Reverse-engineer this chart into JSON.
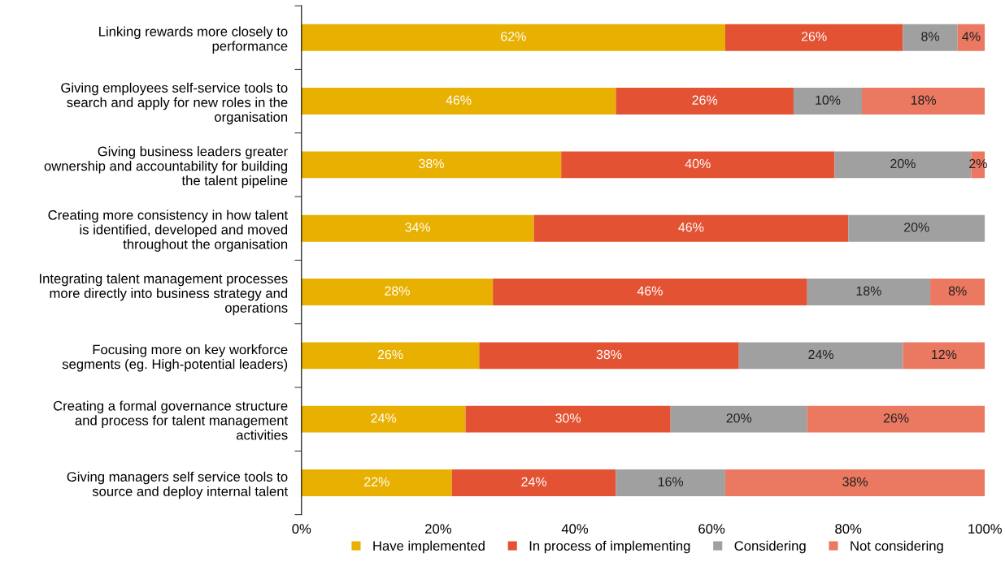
{
  "chart_data": {
    "type": "bar",
    "orientation": "horizontal",
    "stacked": true,
    "grid": false,
    "legend": "bottom",
    "categories": [
      "Linking rewards more closely to\nperformance",
      "Giving employees self-service tools to\nsearch and apply for new roles in the\norganisation",
      "Giving business leaders greater\nownership and accountability for building\nthe talent pipeline",
      "Creating more consistency in how talent\nis identified, developed and moved\nthroughout the organisation",
      "Integrating talent management processes\nmore directly into business strategy and\noperations",
      "Focusing more on key workforce\nsegments (eg. High-potential leaders)",
      "Creating a formal governance structure\nand process for talent management\nactivities",
      "Giving managers self service tools to\nsource and deploy internal talent"
    ],
    "series": [
      {
        "name": "Have implemented",
        "color": "#e8b000",
        "values": [
          62,
          46,
          38,
          34,
          28,
          26,
          24,
          22
        ],
        "value_labels": [
          "62%",
          "46%",
          "38%",
          "34%",
          "28%",
          "26%",
          "24%",
          "22%"
        ]
      },
      {
        "name": "In process of implementing",
        "color": "#e35233",
        "values": [
          26,
          26,
          40,
          46,
          46,
          38,
          30,
          24
        ],
        "value_labels": [
          "26%",
          "26%",
          "40%",
          "46%",
          "46%",
          "38%",
          "30%",
          "24%"
        ]
      },
      {
        "name": "Considering",
        "color": "#a0a0a0",
        "values": [
          8,
          10,
          20,
          20,
          18,
          24,
          20,
          16
        ],
        "value_labels": [
          "8%",
          "10%",
          "20%",
          "20%",
          "18%",
          "24%",
          "20%",
          "16%"
        ]
      },
      {
        "name": "Not considering",
        "color": "#eb7860",
        "values": [
          4,
          18,
          2,
          null,
          8,
          12,
          26,
          38
        ],
        "value_labels": [
          "4%",
          "18%",
          "2%",
          null,
          "8%",
          "12%",
          "26%",
          "38%"
        ]
      }
    ],
    "xlim": [
      0,
      100
    ],
    "xticks": [
      {
        "value": 0,
        "label": "0%"
      },
      {
        "value": 20,
        "label": "20%"
      },
      {
        "value": 40,
        "label": "40%"
      },
      {
        "value": 60,
        "label": "60%"
      },
      {
        "value": 80,
        "label": "80%"
      },
      {
        "value": 100,
        "label": "100%"
      }
    ]
  }
}
